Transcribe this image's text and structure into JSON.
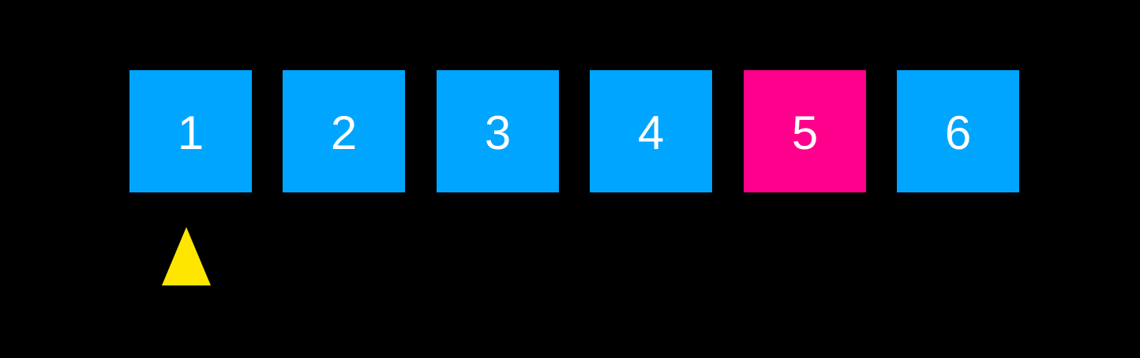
{
  "colors": {
    "background": "#000000",
    "cell_default": "#00a5ff",
    "cell_highlight": "#ff008c",
    "pointer": "#ffe600",
    "text": "#ffffff"
  },
  "cells": [
    {
      "label": "1",
      "highlighted": false
    },
    {
      "label": "2",
      "highlighted": false
    },
    {
      "label": "3",
      "highlighted": false
    },
    {
      "label": "4",
      "highlighted": false
    },
    {
      "label": "5",
      "highlighted": true
    },
    {
      "label": "6",
      "highlighted": false
    }
  ],
  "pointer": {
    "icon": "triangle-up-icon",
    "points_to_index": 0
  }
}
